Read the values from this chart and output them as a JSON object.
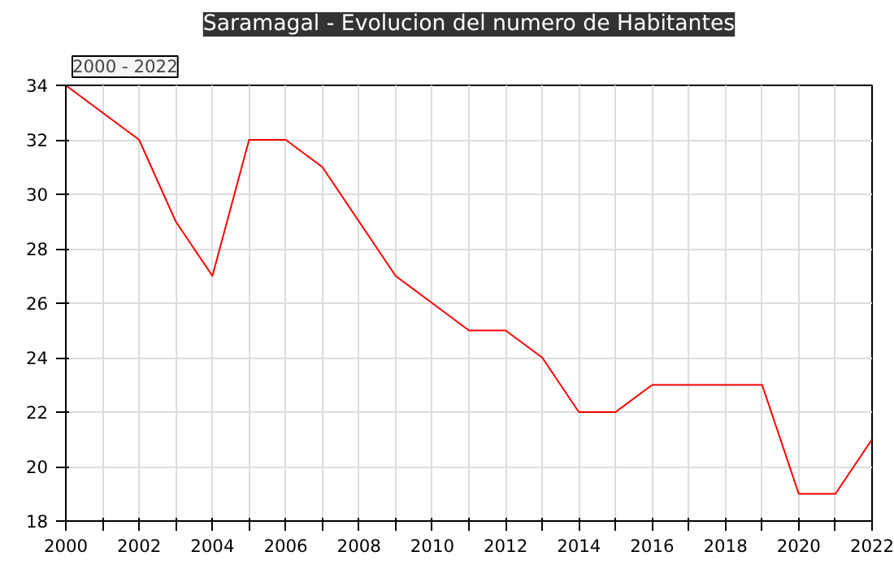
{
  "chart_data": {
    "type": "line",
    "title": "Saramagal - Evolucion del numero de Habitantes",
    "subtitle": "2000 - 2022",
    "x": [
      2000,
      2001,
      2002,
      2003,
      2004,
      2005,
      2006,
      2007,
      2008,
      2009,
      2010,
      2011,
      2012,
      2013,
      2014,
      2015,
      2016,
      2017,
      2018,
      2019,
      2020,
      2021,
      2022
    ],
    "series": [
      {
        "color": "#ff0000",
        "values": [
          34,
          33,
          32,
          29,
          27,
          32,
          32,
          31,
          29,
          27,
          26,
          25,
          25,
          24,
          22,
          22,
          23,
          23,
          23,
          23,
          19,
          19,
          21
        ]
      }
    ],
    "xlim": [
      2000,
      2022
    ],
    "xticks": [
      2000,
      {
        "value": 2001,
        "label": null
      },
      2002,
      {
        "value": 2003,
        "label": null
      },
      2004,
      {
        "value": 2005,
        "label": null
      },
      2006,
      {
        "value": 2007,
        "label": null
      },
      2008,
      {
        "value": 2009,
        "label": null
      },
      2010,
      {
        "value": 2011,
        "label": null
      },
      2012,
      {
        "value": 2013,
        "label": null
      },
      2014,
      {
        "value": 2015,
        "label": null
      },
      2016,
      {
        "value": 2017,
        "label": null
      },
      2018,
      {
        "value": 2019,
        "label": null
      },
      2020,
      {
        "value": 2021,
        "label": null
      },
      2022
    ],
    "ylim": [
      18,
      34
    ],
    "yticks": [
      18,
      20,
      22,
      24,
      26,
      28,
      30,
      32,
      34
    ],
    "grid": true,
    "marker": "none",
    "line_style": "solid"
  }
}
